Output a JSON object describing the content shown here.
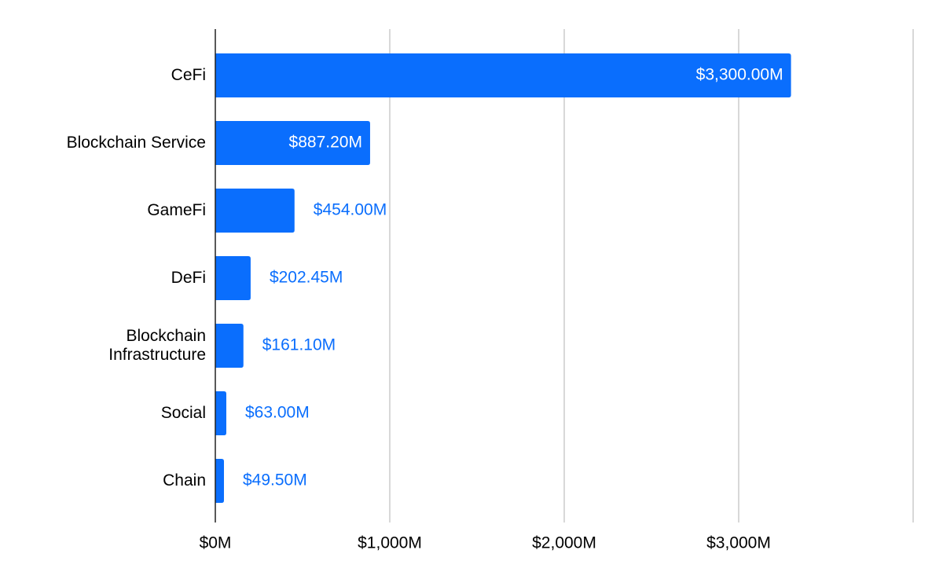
{
  "chart_data": {
    "type": "bar",
    "orientation": "horizontal",
    "categories": [
      [
        "CeFi"
      ],
      [
        "Blockchain Service"
      ],
      [
        "GameFi"
      ],
      [
        "DeFi"
      ],
      [
        "Blockchain",
        "Infrastructure"
      ],
      [
        "Social"
      ],
      [
        "Chain"
      ]
    ],
    "values": [
      3300.0,
      887.2,
      454.0,
      202.45,
      161.1,
      63.0,
      49.5
    ],
    "data_labels": [
      "$3,300.00M",
      "$887.20M",
      "$454.00M",
      "$202.45M",
      "$161.10M",
      "$63.00M",
      "$49.50M"
    ],
    "xlim": [
      0,
      4000
    ],
    "x_ticks": [
      0,
      1000,
      2000,
      3000
    ],
    "x_tick_labels": [
      "$0M",
      "$1,000M",
      "$2,000M",
      "$3,000M"
    ],
    "gridlines": [
      0,
      1000,
      2000,
      3000,
      4000
    ],
    "grid": true,
    "legend": "none",
    "bar_color": "#0a6efd",
    "label_inside_color": "#ffffff",
    "label_outside_color": "#0a6efd"
  }
}
